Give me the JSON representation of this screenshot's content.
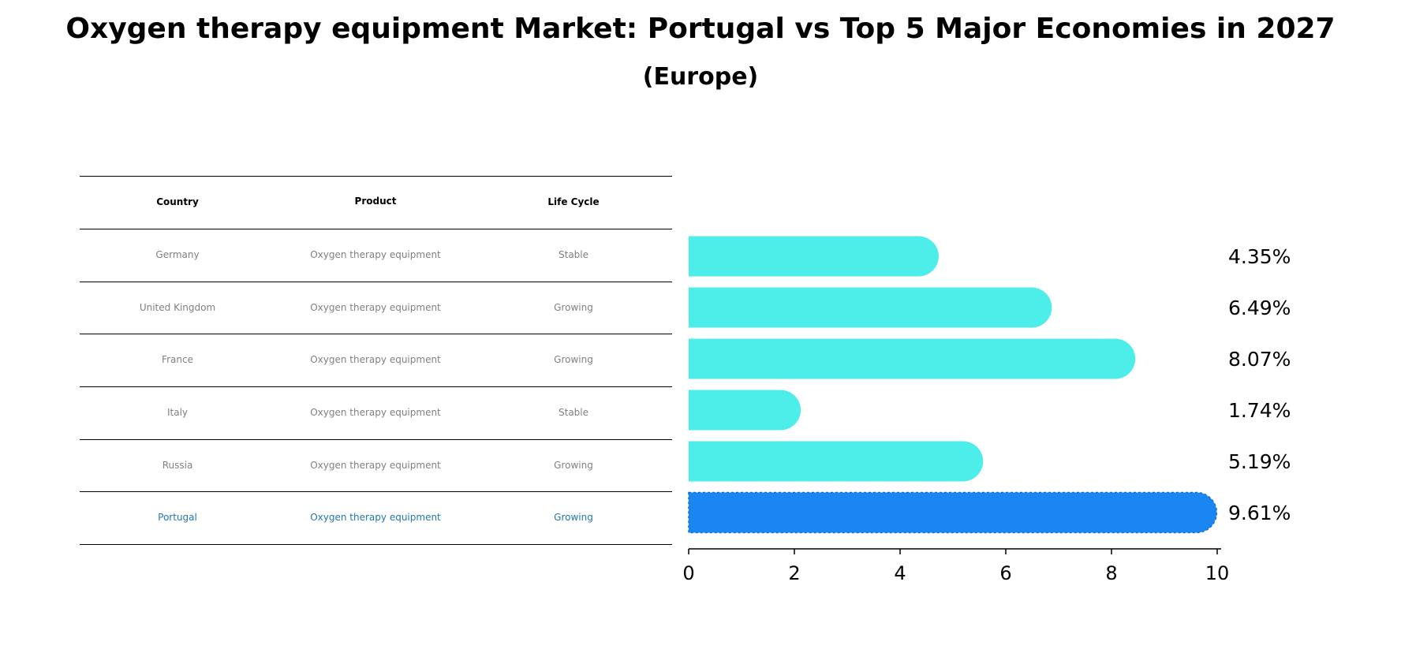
{
  "title": "Oxygen therapy equipment Market: Portugal vs Top 5 Major Economies in 2027",
  "subtitle": "(Europe)",
  "table": {
    "headers": [
      "Country",
      "Product",
      "Life Cycle"
    ],
    "rows": [
      {
        "country": "Germany",
        "product": "Oxygen therapy equipment",
        "life_cycle": "Stable"
      },
      {
        "country": "United Kingdom",
        "product": "Oxygen therapy equipment",
        "life_cycle": "Growing"
      },
      {
        "country": "France",
        "product": "Oxygen therapy equipment",
        "life_cycle": "Growing"
      },
      {
        "country": "Italy",
        "product": "Oxygen therapy equipment",
        "life_cycle": "Stable"
      },
      {
        "country": "Russia",
        "product": "Oxygen therapy equipment",
        "life_cycle": "Growing"
      },
      {
        "country": "Portugal",
        "product": "Oxygen therapy equipment",
        "life_cycle": "Growing"
      }
    ],
    "text_color": "#808080",
    "highlight_color": "#1f77b4"
  },
  "chart_data": {
    "type": "bar",
    "orientation": "horizontal",
    "categories": [
      "Germany",
      "United Kingdom",
      "France",
      "Italy",
      "Russia",
      "Portugal"
    ],
    "values": [
      4.35,
      6.49,
      8.07,
      1.74,
      5.19,
      9.61
    ],
    "value_labels": [
      "4.35%",
      "6.49%",
      "8.07%",
      "1.74%",
      "5.19%",
      "9.61%"
    ],
    "xlim": [
      0,
      10
    ],
    "xticks": [
      0,
      2,
      4,
      6,
      8,
      10
    ],
    "xtick_labels": [
      "0",
      "2",
      "4",
      "6",
      "8",
      "10"
    ],
    "bar_color": "#4deeea",
    "highlight_color": "#1a86f2",
    "highlight_category": "Portugal",
    "grid": false
  }
}
